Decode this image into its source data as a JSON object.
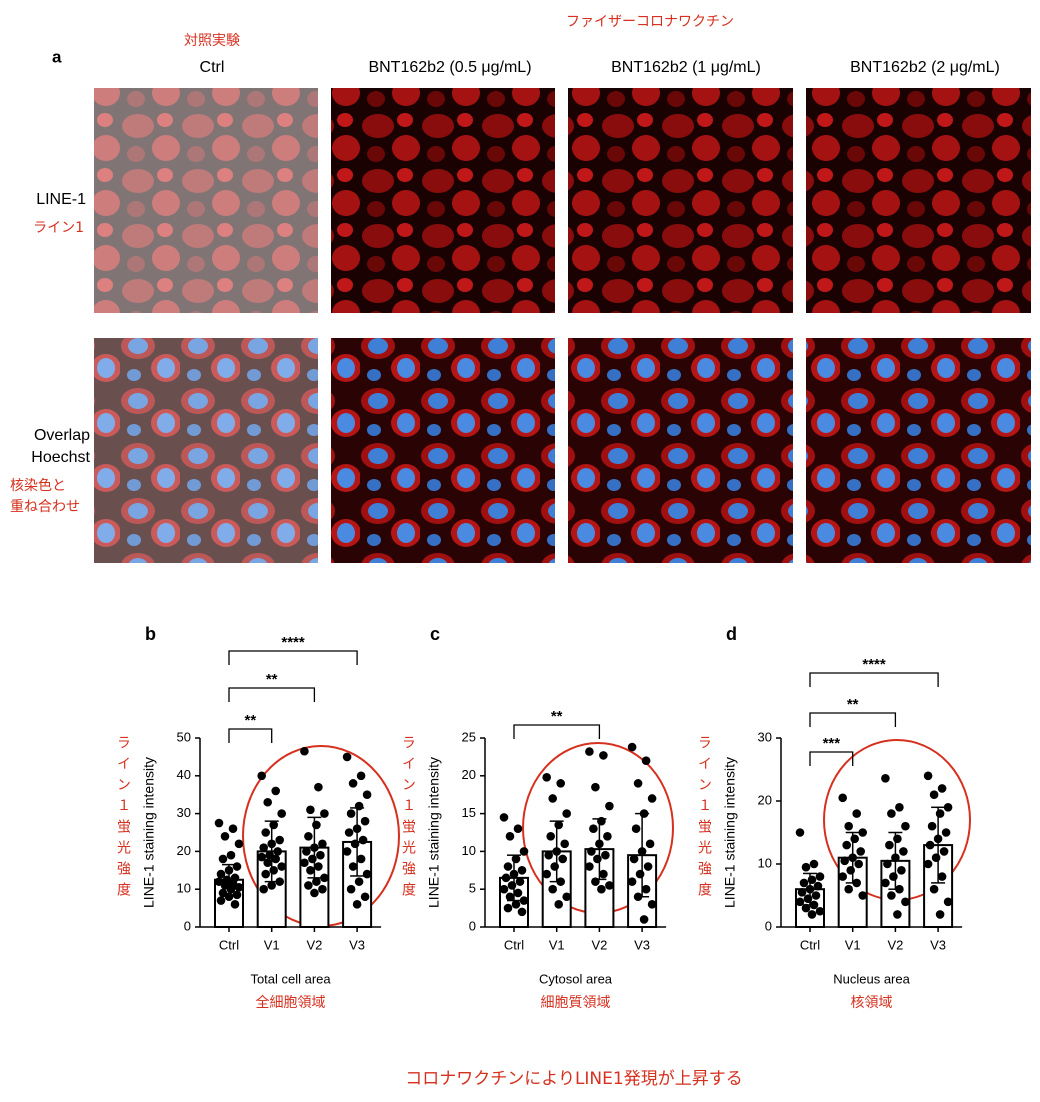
{
  "figure_label": "a",
  "top_note": "ファイザーコロナワクチン",
  "columns": [
    {
      "title": "Ctrl",
      "note": "対照実験"
    },
    {
      "title": "BNT162b2 (0.5 μg/mL)"
    },
    {
      "title": "BNT162b2 (1 μg/mL)"
    },
    {
      "title": "BNT162b2 (2 μg/mL)"
    }
  ],
  "rows": [
    {
      "label": [
        "LINE-1"
      ],
      "note": [
        "ライン1"
      ]
    },
    {
      "label": [
        "Overlap",
        "Hoechst"
      ],
      "note": [
        "核染色と",
        "重ね合わせ"
      ]
    }
  ],
  "caption": "コロナワクチンによりLINE1発現が上昇する",
  "chart_data": [
    {
      "type": "bar",
      "title": "b",
      "ylabel": "LINE-1 staining intensity",
      "ylabel_note": "ライン１蛍光強度",
      "xlabel": "Total cell area",
      "xlabel_note": "全細胞領域",
      "color": "#000000",
      "categories": [
        "Ctrl",
        "V1",
        "V2",
        "V3"
      ],
      "values": [
        12.5,
        20,
        21,
        22.5
      ],
      "errors": [
        4,
        8,
        8,
        9
      ],
      "points": [
        [
          27.5,
          26,
          24,
          22,
          19,
          18,
          16,
          15,
          14,
          13,
          12.5,
          12,
          11.5,
          11,
          10.5,
          10,
          9,
          8.5,
          8,
          7,
          6
        ],
        [
          40,
          36,
          33,
          30,
          27,
          25,
          23,
          22,
          21,
          20,
          19,
          18.5,
          18,
          17,
          16,
          15,
          14,
          12,
          11,
          10
        ],
        [
          46.5,
          37,
          31,
          30,
          27,
          24,
          22,
          21,
          20,
          19,
          18,
          17,
          16,
          15,
          13,
          12,
          11,
          10,
          9
        ],
        [
          45,
          40,
          38,
          35,
          32,
          30,
          28,
          26,
          25,
          23,
          22,
          20,
          18,
          16,
          14,
          12,
          10,
          8,
          6
        ]
      ],
      "ylim": [
        0,
        50
      ],
      "yticks": [
        0,
        10,
        20,
        30,
        40,
        50
      ],
      "significance": [
        {
          "label": "**",
          "pair": [
            "Ctrl",
            "V1"
          ]
        },
        {
          "label": "**",
          "pair": [
            "Ctrl",
            "V2"
          ]
        },
        {
          "label": "****",
          "pair": [
            "Ctrl",
            "V3"
          ]
        }
      ]
    },
    {
      "type": "bar",
      "title": "c",
      "ylabel": "LINE-1 staining intensity",
      "ylabel_note": "ライン１蛍光強度",
      "xlabel": "Cytosol area",
      "xlabel_note": "細胞質領域",
      "color": "#000000",
      "categories": [
        "Ctrl",
        "V1",
        "V2",
        "V3"
      ],
      "values": [
        6.5,
        10,
        10.3,
        9.5
      ],
      "errors": [
        3,
        4,
        4,
        5.5
      ],
      "points": [
        [
          14.5,
          13,
          12,
          10,
          9,
          8,
          7.5,
          7,
          6.5,
          6,
          5.5,
          5,
          4.5,
          4,
          3.5,
          3,
          2.5,
          2
        ],
        [
          19.8,
          19,
          17,
          15,
          13.5,
          12,
          11,
          10,
          9.5,
          9,
          8,
          7,
          6,
          5,
          4,
          3
        ],
        [
          23.2,
          22.7,
          18.5,
          16,
          14,
          13,
          12,
          11,
          10,
          9.5,
          9,
          8,
          7,
          6,
          5.5,
          5
        ],
        [
          23.8,
          22,
          19,
          17,
          15,
          13,
          11,
          10,
          9,
          8,
          7,
          6,
          5,
          4,
          3,
          1
        ]
      ],
      "ylim": [
        0,
        25
      ],
      "yticks": [
        0,
        5,
        10,
        15,
        20,
        25
      ],
      "significance": [
        {
          "label": "**",
          "pair": [
            "Ctrl",
            "V2"
          ]
        }
      ]
    },
    {
      "type": "bar",
      "title": "d",
      "ylabel": "LINE-1 staining intensity",
      "ylabel_note": "ライン１蛍光強度",
      "xlabel": "Nucleus area",
      "xlabel_note": "核領域",
      "color": "#000000",
      "categories": [
        "Ctrl",
        "V1",
        "V2",
        "V3"
      ],
      "values": [
        6,
        11,
        10.5,
        13
      ],
      "errors": [
        2.5,
        4,
        4.5,
        6
      ],
      "points": [
        [
          15,
          10,
          9.5,
          8,
          7.5,
          7,
          6.5,
          6,
          5.5,
          5,
          4.5,
          4,
          3.5,
          3,
          2.5,
          2
        ],
        [
          20.5,
          18,
          16,
          15,
          14,
          13,
          12,
          11,
          10.5,
          10,
          9,
          8,
          7,
          6,
          5
        ],
        [
          23.6,
          19,
          18,
          16,
          14,
          13,
          12,
          11,
          10,
          9,
          8,
          7,
          6,
          5,
          4,
          2
        ],
        [
          24,
          22,
          21,
          19,
          18,
          16,
          15,
          14,
          13,
          12,
          11,
          10,
          8,
          6,
          4,
          2
        ]
      ],
      "ylim": [
        0,
        30
      ],
      "yticks": [
        0,
        10,
        20,
        30
      ],
      "significance": [
        {
          "label": "***",
          "pair": [
            "Ctrl",
            "V1"
          ]
        },
        {
          "label": "**",
          "pair": [
            "Ctrl",
            "V2"
          ]
        },
        {
          "label": "****",
          "pair": [
            "Ctrl",
            "V3"
          ]
        }
      ]
    }
  ]
}
